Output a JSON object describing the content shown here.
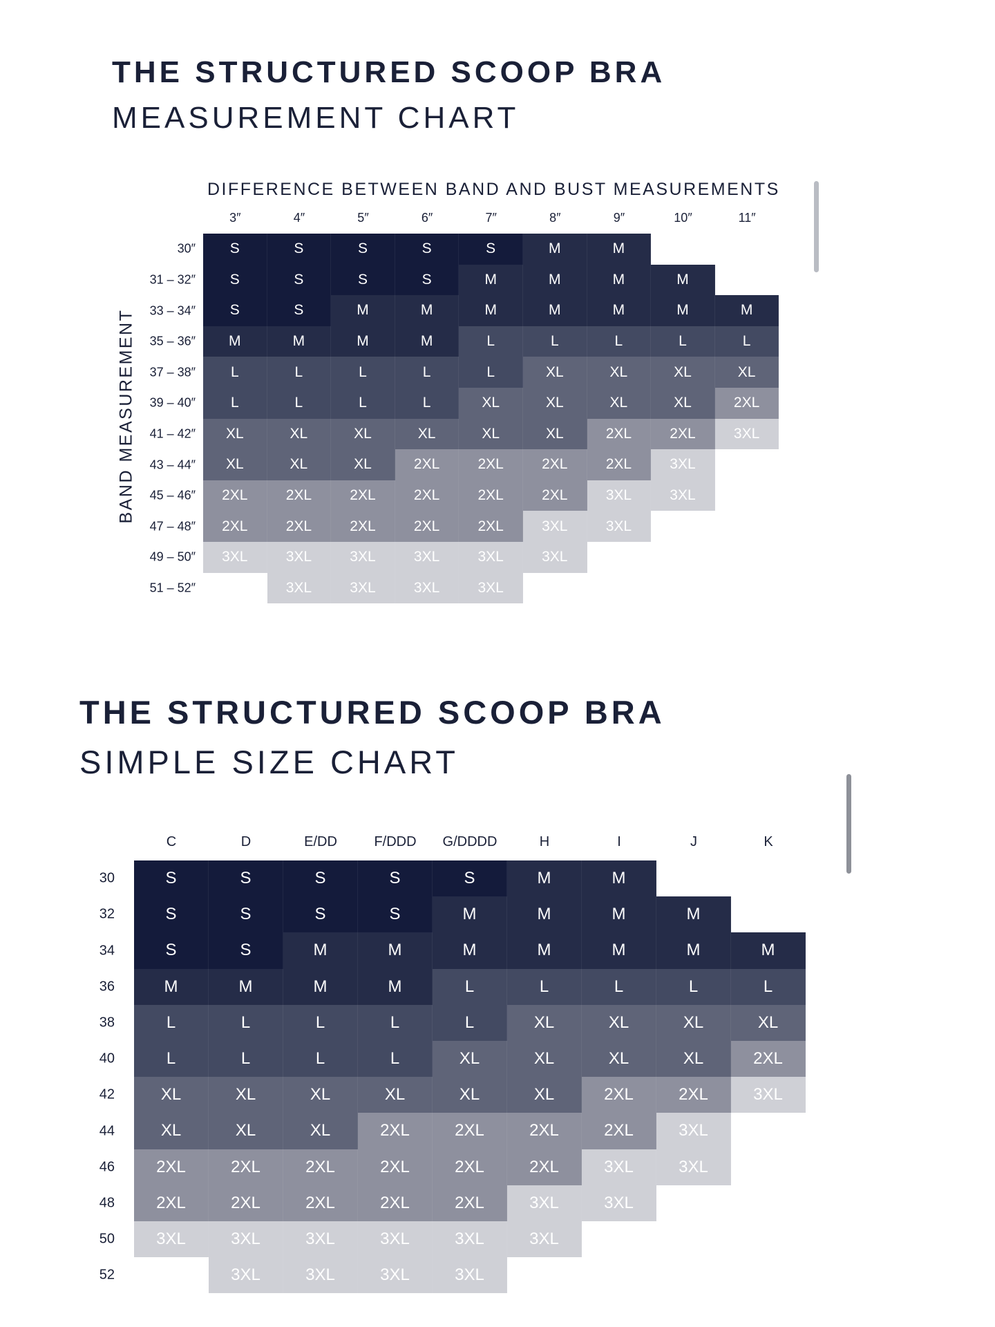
{
  "section1": {
    "title": "THE STRUCTURED SCOOP BRA",
    "subtitle": "MEASUREMENT CHART"
  },
  "section2": {
    "title": "THE STRUCTURED SCOOP BRA",
    "subtitle": "SIMPLE SIZE CHART"
  },
  "colors": {
    "S": "#141b3b",
    "M": "#252c48",
    "L": "#434a62",
    "XL": "#5f6478",
    "2XL": "#8e909e",
    "3XL": "#cfd0d6",
    "text": "#1a2037",
    "background": "#ffffff"
  },
  "chart_data": [
    {
      "type": "table",
      "title": "MEASUREMENT CHART",
      "xlabel": "DIFFERENCE BETWEEN BAND AND BUST MEASUREMENTS",
      "ylabel": "BAND MEASUREMENT",
      "columns": [
        "3″",
        "4″",
        "5″",
        "6″",
        "7″",
        "8″",
        "9″",
        "10″",
        "11″"
      ],
      "rows": [
        "30″",
        "31 – 32″",
        "33 – 34″",
        "35 – 36″",
        "37 – 38″",
        "39 – 40″",
        "41 – 42″",
        "43 – 44″",
        "45 – 46″",
        "47 – 48″",
        "49 – 50″",
        "51 – 52″"
      ],
      "cells": [
        [
          "S",
          "S",
          "S",
          "S",
          "S",
          "M",
          "M",
          "",
          ""
        ],
        [
          "S",
          "S",
          "S",
          "S",
          "M",
          "M",
          "M",
          "M",
          ""
        ],
        [
          "S",
          "S",
          "M",
          "M",
          "M",
          "M",
          "M",
          "M",
          "M"
        ],
        [
          "M",
          "M",
          "M",
          "M",
          "L",
          "L",
          "L",
          "L",
          "L"
        ],
        [
          "L",
          "L",
          "L",
          "L",
          "L",
          "XL",
          "XL",
          "XL",
          "XL"
        ],
        [
          "L",
          "L",
          "L",
          "L",
          "XL",
          "XL",
          "XL",
          "XL",
          "2XL"
        ],
        [
          "XL",
          "XL",
          "XL",
          "XL",
          "XL",
          "XL",
          "2XL",
          "2XL",
          "3XL"
        ],
        [
          "XL",
          "XL",
          "XL",
          "2XL",
          "2XL",
          "2XL",
          "2XL",
          "3XL",
          ""
        ],
        [
          "2XL",
          "2XL",
          "2XL",
          "2XL",
          "2XL",
          "2XL",
          "3XL",
          "3XL",
          ""
        ],
        [
          "2XL",
          "2XL",
          "2XL",
          "2XL",
          "2XL",
          "3XL",
          "3XL",
          "",
          ""
        ],
        [
          "3XL",
          "3XL",
          "3XL",
          "3XL",
          "3XL",
          "3XL",
          "",
          "",
          ""
        ],
        [
          "",
          "3XL",
          "3XL",
          "3XL",
          "3XL",
          "",
          "",
          "",
          ""
        ]
      ]
    },
    {
      "type": "table",
      "title": "SIMPLE SIZE CHART",
      "columns": [
        "C",
        "D",
        "E/DD",
        "F/DDD",
        "G/DDDD",
        "H",
        "I",
        "J",
        "K"
      ],
      "rows": [
        "30",
        "32",
        "34",
        "36",
        "38",
        "40",
        "42",
        "44",
        "46",
        "48",
        "50",
        "52"
      ],
      "cells": [
        [
          "S",
          "S",
          "S",
          "S",
          "S",
          "M",
          "M",
          "",
          ""
        ],
        [
          "S",
          "S",
          "S",
          "S",
          "M",
          "M",
          "M",
          "M",
          ""
        ],
        [
          "S",
          "S",
          "M",
          "M",
          "M",
          "M",
          "M",
          "M",
          "M"
        ],
        [
          "M",
          "M",
          "M",
          "M",
          "L",
          "L",
          "L",
          "L",
          "L"
        ],
        [
          "L",
          "L",
          "L",
          "L",
          "L",
          "XL",
          "XL",
          "XL",
          "XL"
        ],
        [
          "L",
          "L",
          "L",
          "L",
          "XL",
          "XL",
          "XL",
          "XL",
          "2XL"
        ],
        [
          "XL",
          "XL",
          "XL",
          "XL",
          "XL",
          "XL",
          "2XL",
          "2XL",
          "3XL"
        ],
        [
          "XL",
          "XL",
          "XL",
          "2XL",
          "2XL",
          "2XL",
          "2XL",
          "3XL",
          ""
        ],
        [
          "2XL",
          "2XL",
          "2XL",
          "2XL",
          "2XL",
          "2XL",
          "3XL",
          "3XL",
          ""
        ],
        [
          "2XL",
          "2XL",
          "2XL",
          "2XL",
          "2XL",
          "3XL",
          "3XL",
          "",
          ""
        ],
        [
          "3XL",
          "3XL",
          "3XL",
          "3XL",
          "3XL",
          "3XL",
          "",
          "",
          ""
        ],
        [
          "",
          "3XL",
          "3XL",
          "3XL",
          "3XL",
          "",
          "",
          "",
          ""
        ]
      ]
    }
  ]
}
